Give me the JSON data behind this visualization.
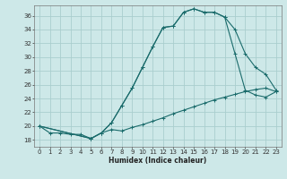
{
  "xlabel": "Humidex (Indice chaleur)",
  "bg_color": "#cde8e8",
  "grid_color": "#aacece",
  "line_color": "#1a6b6b",
  "xlim": [
    -0.5,
    23.5
  ],
  "ylim": [
    17.0,
    37.5
  ],
  "xticks": [
    0,
    1,
    2,
    3,
    4,
    5,
    6,
    7,
    8,
    9,
    10,
    11,
    12,
    13,
    14,
    15,
    16,
    17,
    18,
    19,
    20,
    21,
    22,
    23
  ],
  "yticks": [
    18,
    20,
    22,
    24,
    26,
    28,
    30,
    32,
    34,
    36
  ],
  "line1_x": [
    0,
    1,
    2,
    3,
    4,
    5,
    6,
    7,
    8,
    9,
    10,
    11,
    12,
    13,
    14,
    15,
    16,
    17,
    18,
    19,
    20,
    21,
    22,
    23
  ],
  "line1_y": [
    20.0,
    19.0,
    19.0,
    18.8,
    18.8,
    18.2,
    19.0,
    19.5,
    19.3,
    19.8,
    20.2,
    20.7,
    21.2,
    21.8,
    22.3,
    22.8,
    23.3,
    23.8,
    24.2,
    24.6,
    25.0,
    25.3,
    25.5,
    25.0
  ],
  "line2_x": [
    0,
    5,
    6,
    7,
    8,
    9,
    10,
    11,
    12,
    13,
    14,
    15,
    16,
    17,
    18,
    19,
    20,
    21,
    22,
    23
  ],
  "line2_y": [
    20.0,
    18.2,
    19.0,
    20.5,
    23.0,
    25.5,
    28.5,
    31.5,
    34.3,
    34.5,
    36.5,
    37.0,
    36.5,
    36.5,
    35.8,
    34.0,
    30.5,
    28.5,
    27.5,
    25.2
  ],
  "line3_x": [
    0,
    5,
    6,
    7,
    8,
    9,
    10,
    11,
    12,
    13,
    14,
    15,
    16,
    17,
    18,
    19,
    20,
    21,
    22,
    23
  ],
  "line3_y": [
    20.0,
    18.2,
    19.0,
    20.5,
    23.0,
    25.5,
    28.5,
    31.5,
    34.3,
    34.5,
    36.5,
    37.0,
    36.5,
    36.5,
    35.8,
    30.5,
    25.2,
    24.5,
    24.2,
    25.0
  ]
}
